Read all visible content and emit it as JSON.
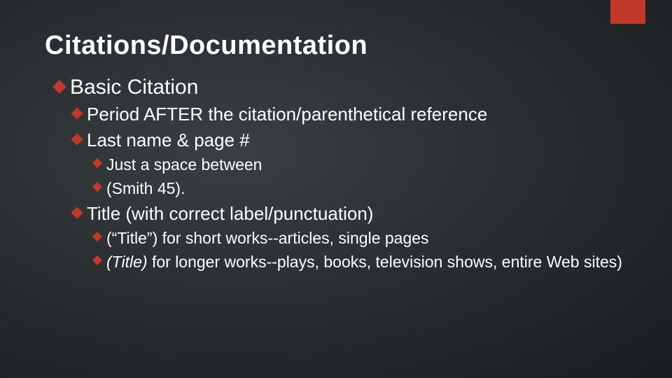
{
  "accent_color": "#c0392b",
  "background_gradient": [
    "#3a3f42",
    "#2a2e31",
    "#1a1d1f"
  ],
  "text_color": "#ffffff",
  "title": "Citations/Documentation",
  "bullets": {
    "b1": "Basic Citation",
    "b1_1": "Period AFTER the citation/parenthetical reference",
    "b1_2": "Last name & page #",
    "b1_2_1": "Just a space between",
    "b1_2_2": "(Smith 45).",
    "b1_3": "Title (with correct label/punctuation)",
    "b1_3_1": "(“Title”) for short works--articles, single pages",
    "b1_3_2a": "(Title)",
    "b1_3_2b": " for longer works--plays, books, television shows, entire Web sites)"
  },
  "fonts": {
    "title_size_pt": 38,
    "lvl1_size_pt": 30,
    "lvl2_size_pt": 26,
    "lvl3_size_pt": 23,
    "lvl4_size_pt": 21,
    "family": "Arial"
  }
}
